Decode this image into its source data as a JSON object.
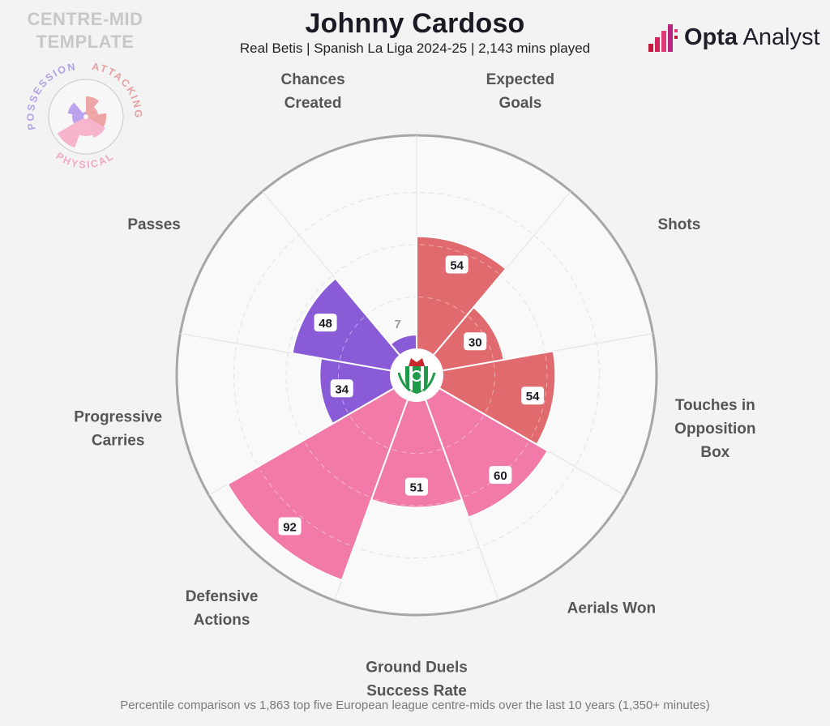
{
  "header": {
    "title": "Johnny Cardoso",
    "subtitle": "Real Betis | Spanish La Liga 2024-25 | 2,143 mins played"
  },
  "template": {
    "line1": "CENTRE-MID",
    "line2": "TEMPLATE",
    "labels": {
      "possession": "POSSESSION",
      "attacking": "ATTACKING",
      "physical": "PHYSICAL"
    }
  },
  "brand": {
    "bold": "Opta",
    "light": " Analyst"
  },
  "colors": {
    "attacking": "#e06a6e",
    "physical": "#f27aa8",
    "possession": "#8a5bd6",
    "background": "#f3f3f3",
    "outer_ring": "#a6a6a6",
    "crest_green": "#1f9a4b"
  },
  "chart_data": {
    "type": "polar-bar",
    "scale": [
      0,
      100
    ],
    "categories": [
      {
        "label": [
          "Expected",
          "Goals"
        ],
        "value": 54,
        "group": "attacking"
      },
      {
        "label": [
          "Shots"
        ],
        "value": 30,
        "group": "attacking"
      },
      {
        "label": [
          "Touches in",
          "Opposition",
          "Box"
        ],
        "value": 54,
        "group": "attacking"
      },
      {
        "label": [
          "Aerials Won"
        ],
        "value": 60,
        "group": "physical"
      },
      {
        "label": [
          "Ground Duels",
          "Success Rate"
        ],
        "value": 51,
        "group": "physical"
      },
      {
        "label": [
          "Defensive",
          "Actions"
        ],
        "value": 92,
        "group": "physical"
      },
      {
        "label": [
          "Progressive",
          "Carries"
        ],
        "value": 34,
        "group": "possession"
      },
      {
        "label": [
          "Passes"
        ],
        "value": 48,
        "group": "possession"
      },
      {
        "label": [
          "Chances",
          "Created"
        ],
        "value": 7,
        "group": "possession"
      }
    ]
  },
  "footnote": "Percentile comparison vs 1,863 top five European league centre-mids over the last 10 years (1,350+ minutes)"
}
